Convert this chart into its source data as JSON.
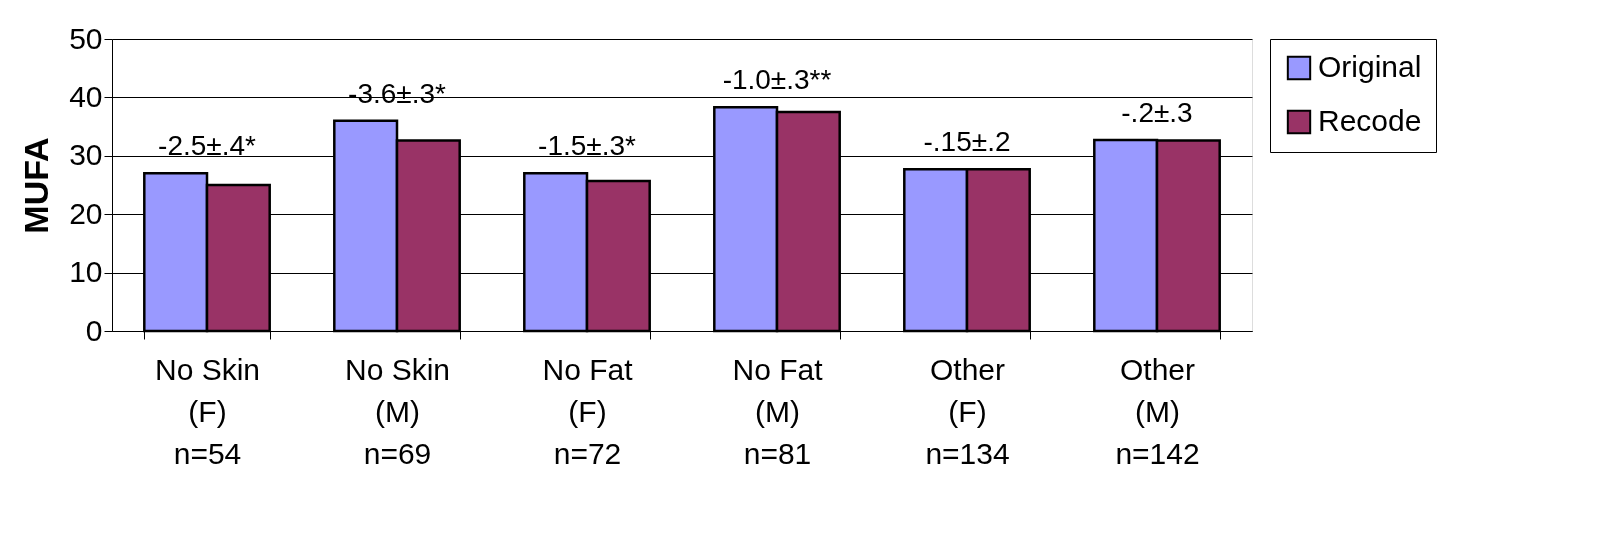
{
  "chart_data": {
    "type": "bar",
    "ylabel": "MUFA",
    "categories": [
      "No Skin\n(F)\nn=54",
      "No Skin\n(M)\nn=69",
      "No Fat\n(F)\nn=72",
      "No Fat\n(M)\nn=81",
      "Other\n(F)\nn=134",
      "Other\n(M)\nn=142"
    ],
    "series": [
      {
        "name": "Original",
        "color": "#9999ff",
        "values": [
          27,
          36,
          27,
          38.3,
          27.7,
          32.7
        ]
      },
      {
        "name": "Recode",
        "color": "#993366",
        "values": [
          25,
          32.6,
          25.7,
          37.5,
          27.7,
          32.6
        ]
      }
    ],
    "ylim": [
      0,
      50
    ],
    "yticks": [
      0,
      10,
      20,
      30,
      40,
      50
    ],
    "grid": "y",
    "legend": "right",
    "annotations": [
      "-2.5±.4*",
      "-3.6±.3*",
      "-1.5±.3*",
      "-1.0±.3**",
      "-.15±.2",
      "-.2±.3"
    ]
  }
}
